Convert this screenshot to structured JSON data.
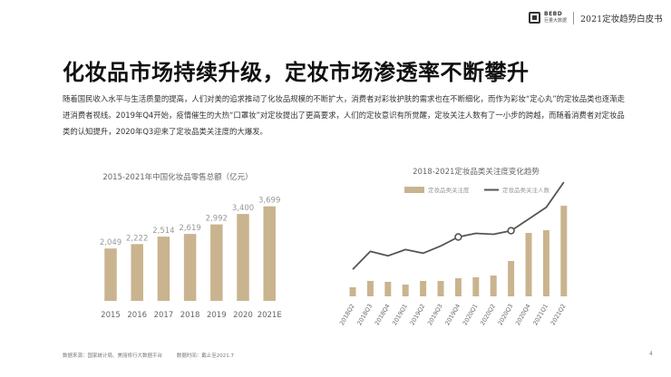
{
  "header": {
    "brand": "BEBD",
    "brand_sub": "巨量大数据",
    "report_title": "2021定妆趋势白皮书"
  },
  "page": {
    "title": "化妆品市场持续升级，定妆市场渗透率不断攀升",
    "paragraph": "随着国民收入水平与生活质量的提高，人们对美的追求推动了化妆品规模的不断扩大，消费者对彩妆护肤的需求也在不断细化，而作为彩妆“定心丸”的定妆品类也逐渐走进消费者视线。2019年Q4开始，疫情催生的大热“口罩妆”对定妆提出了更高要求，人们的定妆意识有所觉醒，定妆关注人数有了一小步的跨越，而随着消费者对定妆品类的认知提升，2020年Q3迎来了定妆品类关注度的大爆发。",
    "page_number": "4"
  },
  "footer": {
    "source": "数据来源：国家统计局、美丽修行大数据平台",
    "time": "数据时间：截止至2021.7"
  },
  "colors": {
    "bar": "#c9b48f",
    "line": "#555555",
    "axis_text": "#666666",
    "label_text": "#999999"
  },
  "chart_data": [
    {
      "type": "bar",
      "title": "2015-2021年中国化妆品零售总额（亿元）",
      "categories": [
        "2015",
        "2016",
        "2017",
        "2018",
        "2019",
        "2020",
        "2021E"
      ],
      "values": [
        2049,
        2222,
        2514,
        2619,
        2992,
        3400,
        3699
      ],
      "value_labels": [
        "2,049",
        "2,222",
        "2,514",
        "2,619",
        "2,992",
        "3,400",
        "3,699"
      ],
      "ylim": [
        0,
        3900
      ],
      "grid": false
    },
    {
      "type": "bar+line",
      "title": "2018-2021定妆品类关注度变化趋势",
      "categories": [
        "2018Q2",
        "2018Q3",
        "2018Q4",
        "2019Q1",
        "2019Q2",
        "2019Q3",
        "2019Q4",
        "2020Q1",
        "2020Q2",
        "2020Q3",
        "2020Q4",
        "2021Q1",
        "2021Q2"
      ],
      "legend_position": "top",
      "grid": false,
      "series": [
        {
          "name": "定妆品类关注度",
          "type": "bar",
          "values": [
            10,
            17,
            16,
            13,
            17,
            17,
            20,
            21,
            23,
            39,
            70,
            73,
            100
          ]
        },
        {
          "name": "定妆品类关注人数",
          "type": "line",
          "values": [
            30,
            50,
            45,
            52,
            48,
            56,
            66,
            70,
            69,
            73,
            86,
            99,
            127
          ]
        }
      ],
      "highlighted_points": [
        "2019Q4",
        "2020Q3"
      ],
      "bar_ylim": [
        0,
        102
      ],
      "line_ylim": [
        0,
        130
      ]
    }
  ]
}
